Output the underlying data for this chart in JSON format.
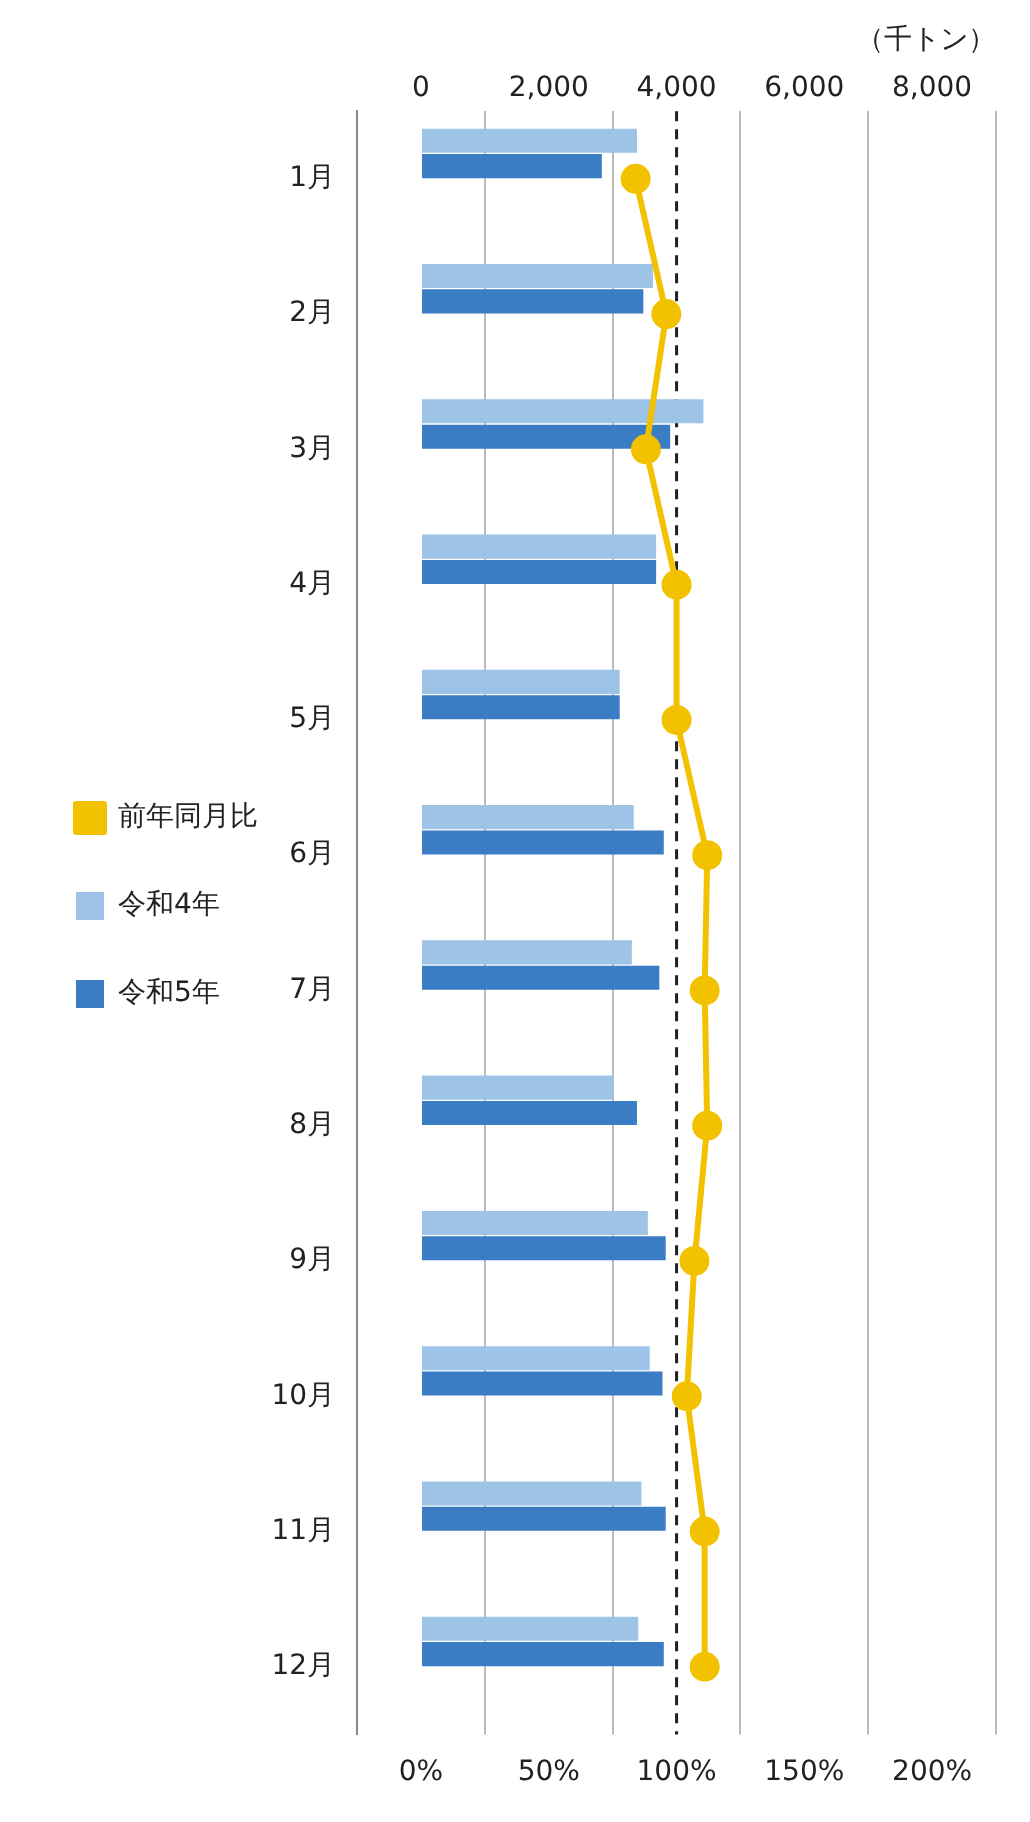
{
  "chart_data": {
    "type": "bar",
    "orientation": "horizontal",
    "xlabel": "（千トン）",
    "categories": [
      "1月",
      "2月",
      "3月",
      "4月",
      "5月",
      "6月",
      "7月",
      "8月",
      "9月",
      "10月",
      "11月",
      "12月"
    ],
    "series": [
      {
        "name": "令和4年",
        "color": "#9dc3e6",
        "values": [
          3380,
          3630,
          4420,
          3680,
          3110,
          3330,
          3300,
          3010,
          3550,
          3580,
          3450,
          3400
        ]
      },
      {
        "name": "令和5年",
        "color": "#3b7dc4",
        "values": [
          2830,
          3480,
          3900,
          3680,
          3110,
          3800,
          3730,
          3380,
          3830,
          3780,
          3830,
          3800
        ]
      },
      {
        "name": "前年同月比",
        "type": "line",
        "axis": "x2",
        "color": "#f2c200",
        "values": [
          84,
          96,
          88,
          100,
          100,
          112,
          111,
          112,
          107,
          104,
          111,
          111
        ]
      }
    ],
    "xlim": [
      0,
      8000
    ],
    "xticks": [
      {
        "value": 0,
        "label": "0"
      },
      {
        "value": 2000,
        "label": "2,000"
      },
      {
        "value": 4000,
        "label": "4,000"
      },
      {
        "value": 6000,
        "label": "6,000"
      },
      {
        "value": 8000,
        "label": "8,000"
      }
    ],
    "x2lim": [
      0,
      200
    ],
    "x2ticks": [
      {
        "value": 0,
        "label": "0%"
      },
      {
        "value": 50,
        "label": "50%"
      },
      {
        "value": 100,
        "label": "100%"
      },
      {
        "value": 150,
        "label": "150%"
      },
      {
        "value": 200,
        "label": "200%"
      }
    ],
    "ref_lines": [
      {
        "axis": "x2",
        "value": 100,
        "color": "#222222",
        "line_style": "dashed"
      }
    ],
    "grid": "x",
    "legend": "left",
    "marker": "circle"
  }
}
